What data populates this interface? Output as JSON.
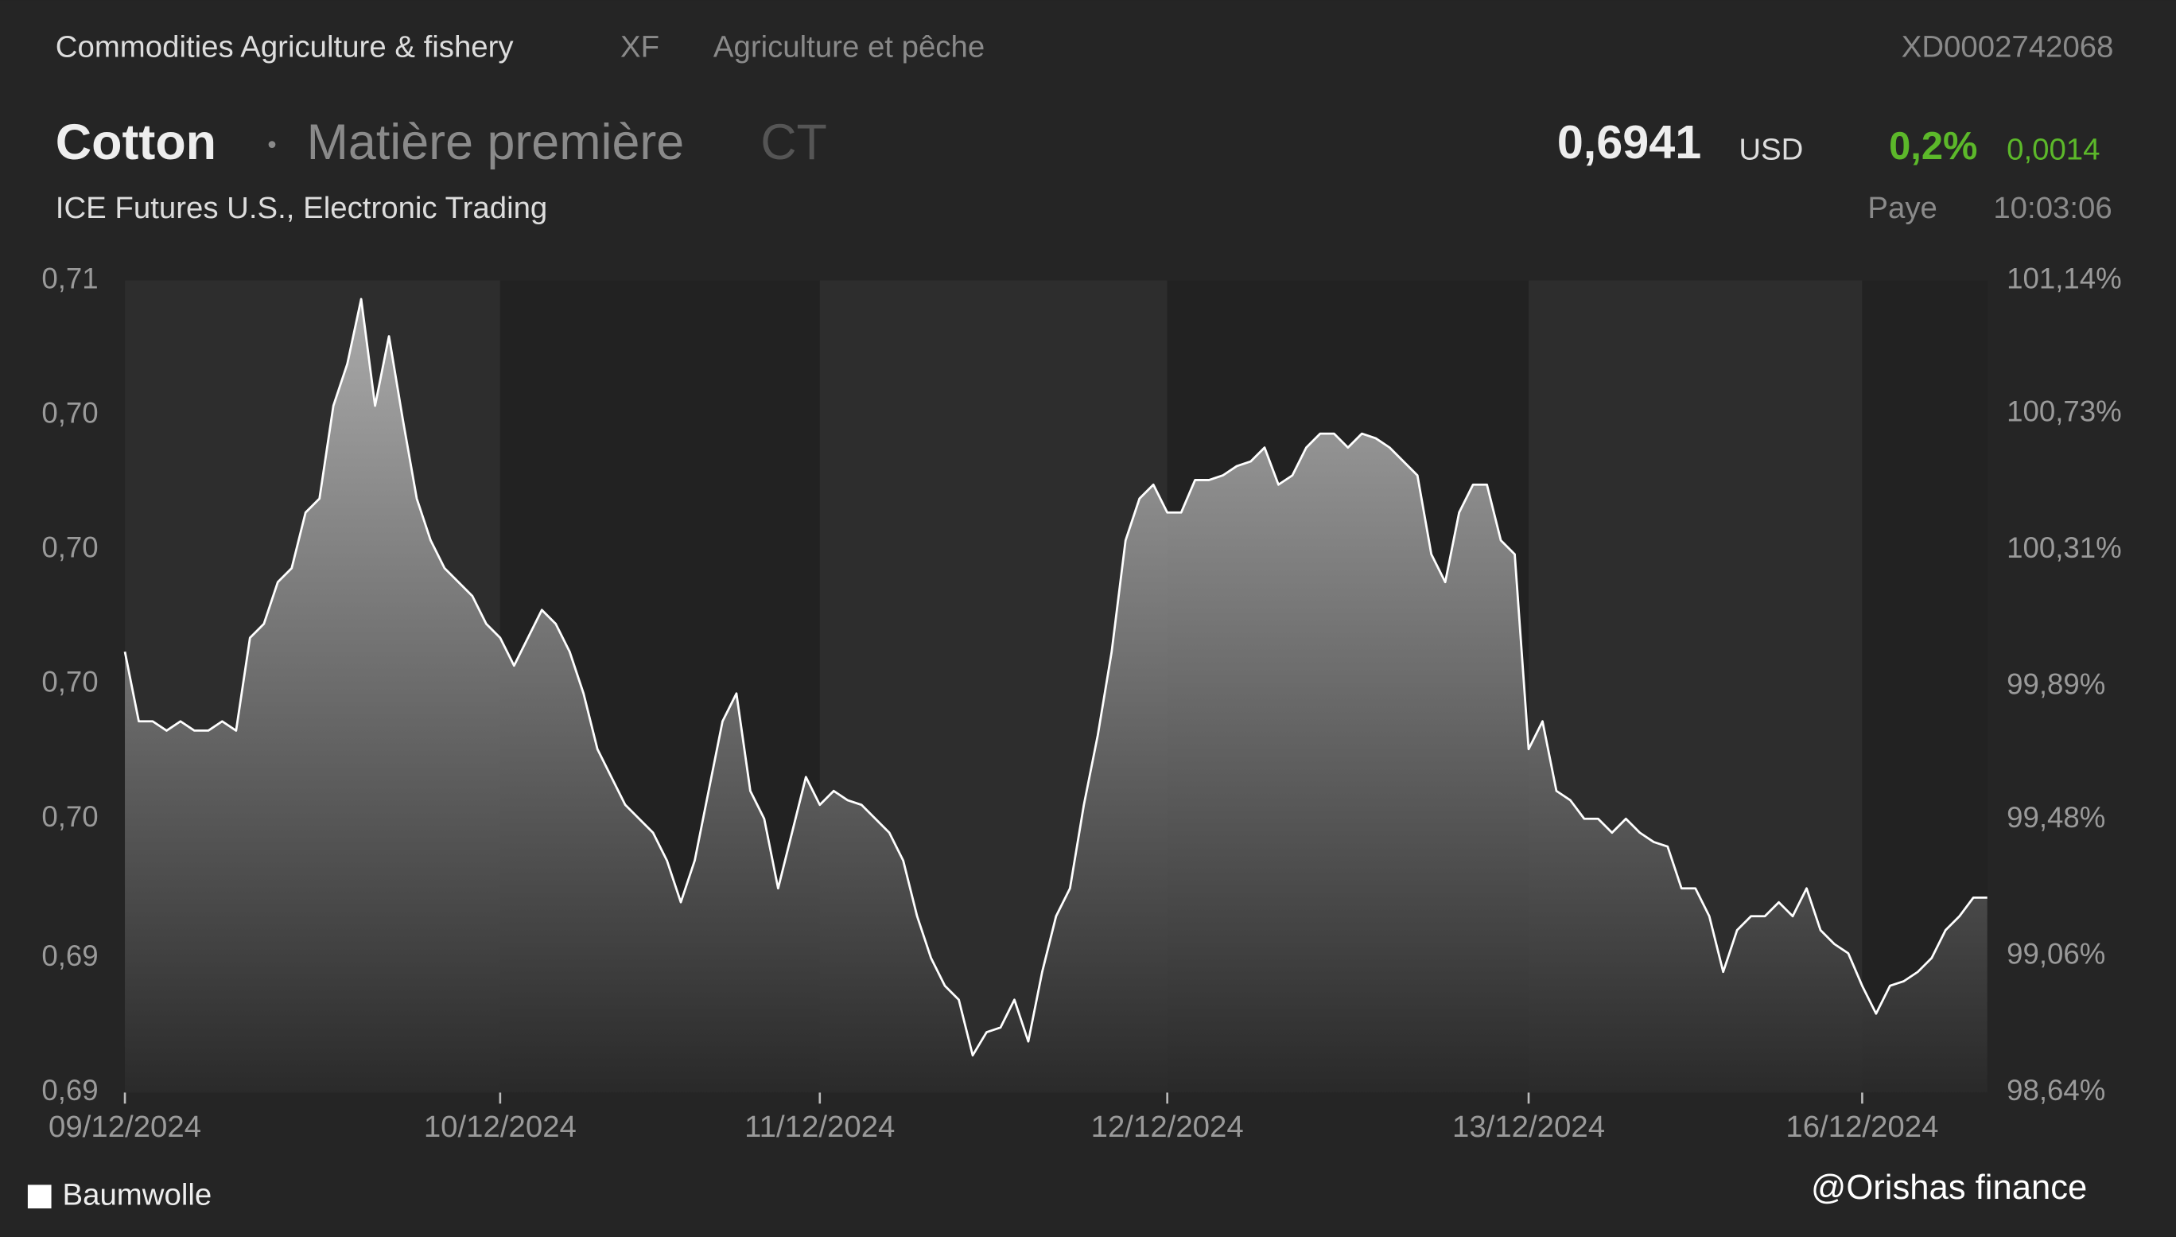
{
  "header": {
    "category": "Commodities Agriculture & fishery",
    "exchange_code": "XF",
    "category_fr": "Agriculture et pêche",
    "isin": "XD0002742068",
    "name": "Cotton",
    "asset_class": "Matière première",
    "symbol": "CT",
    "price": "0,6941",
    "currency": "USD",
    "change_pct": "0,2%",
    "change_abs": "0,0014",
    "exchange": "ICE Futures U.S., Electronic Trading",
    "status": "Paye",
    "time": "10:03:06"
  },
  "watermark": "@Orishas finance",
  "chart_data": {
    "type": "area",
    "legend": "bottom-left",
    "grid": false,
    "xlim": [
      0,
      134
    ],
    "xticks": [
      {
        "value": 0,
        "label": "09/12/2024"
      },
      {
        "value": 27,
        "label": "10/12/2024"
      },
      {
        "value": 50,
        "label": "11/12/2024"
      },
      {
        "value": 75,
        "label": "12/12/2024"
      },
      {
        "value": 101,
        "label": "13/12/2024"
      },
      {
        "value": 125,
        "label": "16/12/2024"
      }
    ],
    "ylim": [
      0.6895,
      0.707
    ],
    "yticks": [
      {
        "value": 0.6895,
        "label": "0,69"
      },
      {
        "value": 0.6924,
        "label": "0,69"
      },
      {
        "value": 0.6954,
        "label": "0,70"
      },
      {
        "value": 0.6983,
        "label": "0,70"
      },
      {
        "value": 0.7012,
        "label": "0,70"
      },
      {
        "value": 0.7041,
        "label": "0,70"
      },
      {
        "value": 0.707,
        "label": "0,71"
      }
    ],
    "y2lim": [
      98.64,
      101.14
    ],
    "y2ticks": [
      {
        "value": 98.64,
        "label": "98,64%"
      },
      {
        "value": 99.06,
        "label": "99,06%"
      },
      {
        "value": 99.48,
        "label": "99,48%"
      },
      {
        "value": 99.89,
        "label": "99,89%"
      },
      {
        "value": 100.31,
        "label": "100,31%"
      },
      {
        "value": 100.73,
        "label": "100,73%"
      },
      {
        "value": 101.14,
        "label": "101,14%"
      }
    ],
    "series": [
      {
        "name": "Baumwolle",
        "color": "#ffffff",
        "values": [
          0.699,
          0.6975,
          0.6975,
          0.6973,
          0.6975,
          0.6973,
          0.6973,
          0.6975,
          0.6973,
          0.6993,
          0.6996,
          0.7005,
          0.7008,
          0.702,
          0.7023,
          0.7043,
          0.7052,
          0.7066,
          0.7043,
          0.7058,
          0.704,
          0.7023,
          0.7014,
          0.7008,
          0.7005,
          0.7002,
          0.6996,
          0.6993,
          0.6987,
          0.6993,
          0.6999,
          0.6996,
          0.699,
          0.6981,
          0.6969,
          0.6963,
          0.6957,
          0.6954,
          0.6951,
          0.6945,
          0.6936,
          0.6945,
          0.696,
          0.6975,
          0.6981,
          0.696,
          0.6954,
          0.6939,
          0.6951,
          0.6963,
          0.6957,
          0.696,
          0.6958,
          0.6957,
          0.6954,
          0.6951,
          0.6945,
          0.6933,
          0.6924,
          0.6918,
          0.6915,
          0.6903,
          0.6908,
          0.6909,
          0.6915,
          0.6906,
          0.6921,
          0.6933,
          0.6939,
          0.6957,
          0.6972,
          0.699,
          0.7014,
          0.7023,
          0.7026,
          0.702,
          0.702,
          0.7027,
          0.7027,
          0.7028,
          0.703,
          0.7031,
          0.7034,
          0.7026,
          0.7028,
          0.7034,
          0.7037,
          0.7037,
          0.7034,
          0.7037,
          0.7036,
          0.7034,
          0.7031,
          0.7028,
          0.7011,
          0.7005,
          0.702,
          0.7026,
          0.7026,
          0.7014,
          0.7011,
          0.6969,
          0.6975,
          0.696,
          0.6958,
          0.6954,
          0.6954,
          0.6951,
          0.6954,
          0.6951,
          0.6949,
          0.6948,
          0.6939,
          0.6939,
          0.6933,
          0.6921,
          0.693,
          0.6933,
          0.6933,
          0.6936,
          0.6933,
          0.6939,
          0.693,
          0.6927,
          0.6925,
          0.6918,
          0.6912,
          0.6918,
          0.6919,
          0.6921,
          0.6924,
          0.693,
          0.6933,
          0.6937,
          0.6937
        ]
      }
    ]
  }
}
